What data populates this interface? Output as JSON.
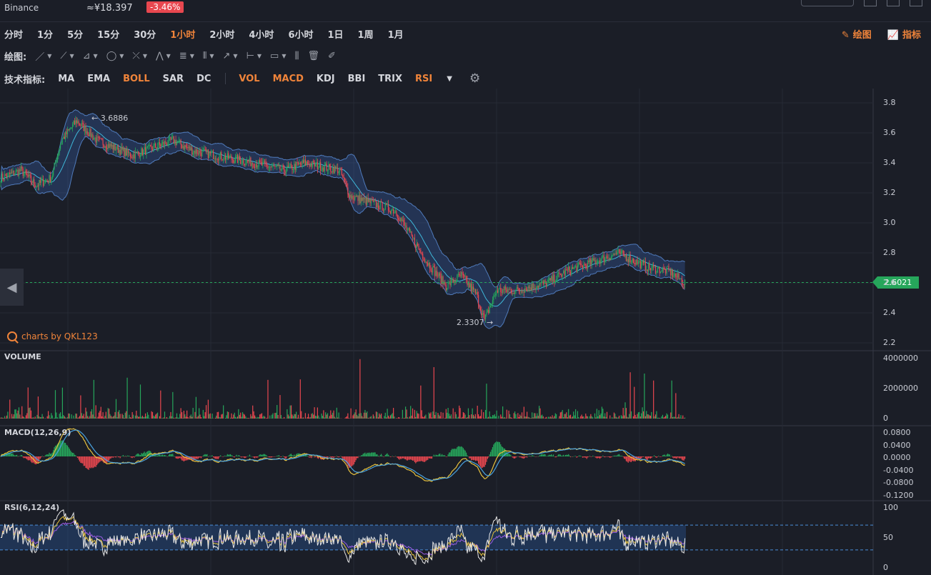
{
  "topbar": {
    "exchange": "Binance",
    "price": "≈¥18.397",
    "change": "-3.46%"
  },
  "intervals": [
    "分时",
    "1分",
    "5分",
    "15分",
    "30分",
    "1小时",
    "2小时",
    "4小时",
    "6小时",
    "1日",
    "1周",
    "1月"
  ],
  "active_interval": "1小时",
  "toolbar_right": {
    "draw_label": "绘图",
    "indicator_label": "指标"
  },
  "draw_tools_label": "绘图:",
  "indicators_label": "技术指标:",
  "indicators_main": [
    {
      "name": "MA",
      "on": false
    },
    {
      "name": "EMA",
      "on": false
    },
    {
      "name": "BOLL",
      "on": true
    },
    {
      "name": "SAR",
      "on": false
    },
    {
      "name": "DC",
      "on": false
    }
  ],
  "indicators_sub": [
    {
      "name": "VOL",
      "on": true
    },
    {
      "name": "MACD",
      "on": true
    },
    {
      "name": "KDJ",
      "on": false
    },
    {
      "name": "BBI",
      "on": false
    },
    {
      "name": "TRIX",
      "on": false
    },
    {
      "name": "RSI",
      "on": true
    }
  ],
  "credit": "charts by QKL123",
  "price_axis": [
    "3.8",
    "3.6",
    "3.4",
    "3.2",
    "3.0",
    "2.8",
    "2.6",
    "2.4",
    "2.2"
  ],
  "last_price": "2.6021",
  "annotations": {
    "high": "3.6886",
    "low": "2.3307"
  },
  "volume_label": "VOLUME",
  "volume_axis": [
    "4000000",
    "2000000",
    "0"
  ],
  "macd_label": "MACD(12,26,9)",
  "macd_axis": [
    "0.0800",
    "0.0400",
    "0.0000",
    "-0.0400",
    "-0.0800",
    "-0.1200"
  ],
  "rsi_label": "RSI(6,12,24)",
  "rsi_axis": [
    "100",
    "50",
    "0"
  ],
  "colors": {
    "up": "#26a65b",
    "down": "#e8474f",
    "accent": "#f0843a",
    "boll_mid": "#3fb8d9",
    "boll_band": "#5b8fd9",
    "macd_dif": "#e7c13d",
    "macd_dea": "#4aa3e0",
    "rsi6": "#e6e6e6",
    "rsi12": "#e7c13d",
    "rsi24": "#9b5de5"
  },
  "chart_data": {
    "type": "candlestick",
    "price_anchors": [
      [
        0,
        3.3
      ],
      [
        20,
        3.35
      ],
      [
        35,
        3.25
      ],
      [
        50,
        3.3
      ],
      [
        60,
        3.55
      ],
      [
        75,
        3.68
      ],
      [
        95,
        3.55
      ],
      [
        130,
        3.45
      ],
      [
        170,
        3.55
      ],
      [
        190,
        3.48
      ],
      [
        250,
        3.4
      ],
      [
        280,
        3.35
      ],
      [
        300,
        3.4
      ],
      [
        335,
        3.35
      ],
      [
        345,
        3.18
      ],
      [
        390,
        3.08
      ],
      [
        420,
        2.75
      ],
      [
        440,
        2.58
      ],
      [
        455,
        2.65
      ],
      [
        470,
        2.52
      ],
      [
        478,
        2.35
      ],
      [
        490,
        2.55
      ],
      [
        510,
        2.55
      ],
      [
        540,
        2.6
      ],
      [
        560,
        2.68
      ],
      [
        590,
        2.75
      ],
      [
        610,
        2.8
      ],
      [
        640,
        2.7
      ],
      [
        660,
        2.68
      ],
      [
        676,
        2.6
      ]
    ],
    "price_range": [
      2.2,
      3.8
    ],
    "volume_max": 4000000,
    "macd_range": [
      -0.12,
      0.08
    ],
    "rsi_range": [
      0,
      100
    ],
    "rsi_bands": [
      30,
      70
    ]
  }
}
